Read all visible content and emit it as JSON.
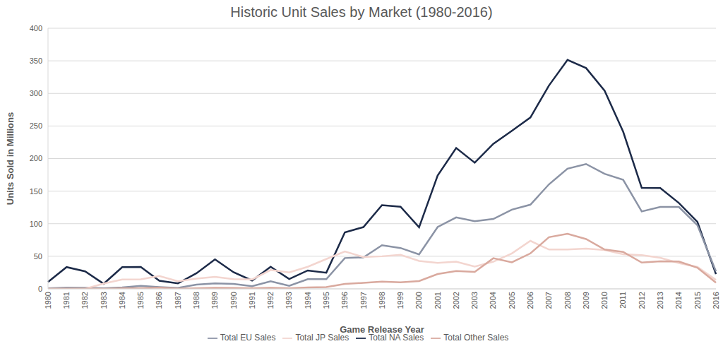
{
  "chart_data": {
    "type": "line",
    "title": "Historic Unit Sales by Market (1980-2016)",
    "x_label": "Game Release Year",
    "y_label": "Units Sold in Millions",
    "categories": [
      "1980",
      "1981",
      "1982",
      "1983",
      "1984",
      "1985",
      "1986",
      "1987",
      "1988",
      "1989",
      "1990",
      "1991",
      "1992",
      "1993",
      "1994",
      "1995",
      "1996",
      "1997",
      "1998",
      "1999",
      "2000",
      "2001",
      "2002",
      "2003",
      "2004",
      "2005",
      "2006",
      "2007",
      "2008",
      "2009",
      "2010",
      "2011",
      "2012",
      "2013",
      "2014",
      "2015",
      "2016"
    ],
    "series": [
      {
        "name": "Total NA Sales",
        "color": "#1c2a48",
        "values": [
          10.6,
          33.4,
          26.9,
          7.8,
          33.3,
          33.7,
          12.5,
          8.5,
          23.9,
          45.2,
          25.5,
          12.8,
          33.9,
          15.1,
          28.2,
          24.8,
          86.8,
          94.8,
          128.4,
          126.1,
          94.5,
          173.9,
          216.2,
          193.6,
          222.6,
          242.6,
          263.1,
          312.1,
          351.4,
          338.9,
          304.2,
          241.2,
          154.9,
          154.8,
          131.9,
          102.8,
          22.7
        ]
      },
      {
        "name": "Total EU Sales",
        "color": "#8b93a5",
        "values": [
          0.7,
          1.9,
          1.7,
          0.8,
          2.1,
          4.7,
          2.8,
          1.4,
          6.6,
          8.4,
          7.6,
          4.0,
          11.7,
          4.7,
          14.9,
          14.9,
          47.3,
          48.3,
          66.9,
          62.7,
          52.8,
          94.9,
          109.7,
          103.8,
          107.3,
          121.6,
          129.2,
          160.4,
          184.4,
          191.6,
          176.6,
          167.4,
          118.8,
          125.8,
          125.7,
          97.7,
          26.8
        ]
      },
      {
        "name": "Total JP Sales",
        "color": "#f3d5cf",
        "values": [
          0,
          0,
          0,
          8.1,
          14.3,
          14.6,
          19.8,
          11.6,
          15.8,
          18.4,
          14.9,
          14.5,
          28.9,
          25.3,
          33.9,
          45.8,
          57.4,
          48.9,
          50.0,
          52.3,
          42.8,
          39.9,
          41.8,
          34.2,
          41.7,
          54.3,
          73.7,
          60.3,
          60.3,
          61.9,
          59.5,
          53.0,
          51.8,
          47.7,
          39.5,
          33.7,
          13.7
        ]
      },
      {
        "name": "Total Other Sales",
        "color": "#d9a99e",
        "values": [
          0.1,
          0.3,
          0.3,
          0.1,
          0.7,
          0.9,
          1.9,
          0.2,
          0.9,
          1.5,
          1.4,
          0.7,
          1.7,
          0.9,
          2.2,
          2.6,
          7.7,
          9.1,
          11.1,
          10.1,
          11.9,
          22.7,
          27.3,
          26.0,
          47.0,
          40.7,
          54.4,
          79.3,
          84.4,
          76.5,
          60.4,
          56.6,
          40.3,
          42.2,
          42.0,
          32.5,
          9.4
        ]
      }
    ],
    "ylim": [
      0,
      400
    ],
    "yticks": [
      0,
      50,
      100,
      150,
      200,
      250,
      300,
      350,
      400
    ],
    "grid": true,
    "legend": "bottom"
  }
}
